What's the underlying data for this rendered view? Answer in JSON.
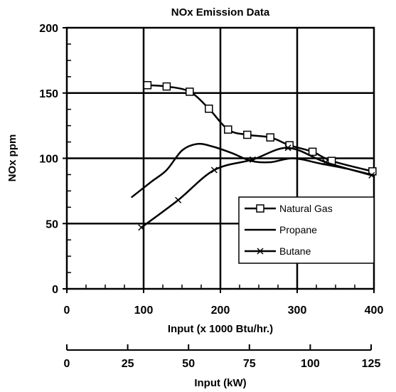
{
  "chart_data": {
    "type": "line",
    "title": "NOx Emission Data",
    "ylabel": "NOx ppm",
    "xlabel": "Input (x 1000 Btu/hr.)",
    "x2label": "Input (kW)",
    "xlim": [
      0,
      400
    ],
    "ylim": [
      0,
      200
    ],
    "x2lim": [
      0,
      125
    ],
    "x_ticks": [
      "0",
      "100",
      "200",
      "300",
      "400"
    ],
    "y_ticks": [
      "0",
      "50",
      "100",
      "150",
      "200"
    ],
    "x2_ticks": [
      "0",
      "25",
      "50",
      "75",
      "100",
      "125"
    ],
    "x_tick_values": [
      0,
      100,
      200,
      300,
      400
    ],
    "y_tick_values": [
      0,
      50,
      100,
      150,
      200
    ],
    "x2_tick_values": [
      0,
      25,
      50,
      75,
      100,
      125
    ],
    "grid": true,
    "legend_position": "lower-right",
    "series": [
      {
        "name": "Natural Gas",
        "marker": "square",
        "x": [
          105,
          130,
          160,
          185,
          210,
          235,
          265,
          290,
          320,
          345,
          398
        ],
        "y": [
          156,
          155,
          151,
          138,
          122,
          118,
          116,
          110,
          105,
          98,
          90
        ]
      },
      {
        "name": "Propane",
        "marker": "none",
        "x": [
          84,
          110,
          130,
          150,
          170,
          190,
          215,
          240,
          265,
          295,
          330,
          365,
          400
        ],
        "y": [
          70,
          82,
          91,
          106,
          111,
          109,
          104,
          98,
          97,
          100,
          96,
          92,
          87
        ]
      },
      {
        "name": "Butane",
        "marker": "x",
        "x": [
          97,
          145,
          192,
          242,
          288,
          337,
          397
        ],
        "y": [
          47,
          68,
          91,
          99,
          108,
          97,
          87
        ]
      }
    ]
  }
}
